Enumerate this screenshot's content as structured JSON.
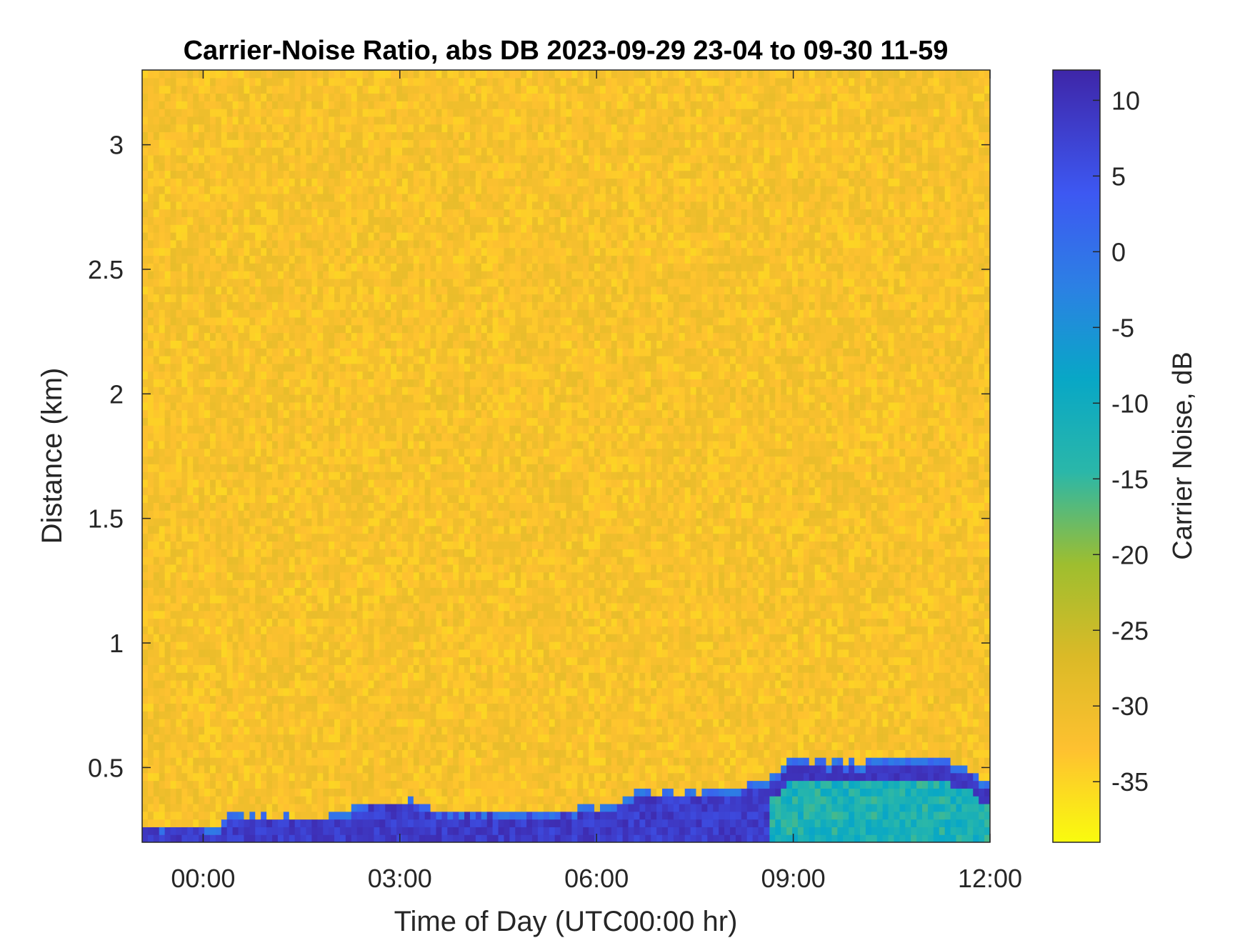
{
  "chart_data": {
    "type": "heatmap",
    "title": "Carrier-Noise Ratio, abs DB 2023-09-29 23-04 to 09-30 11-59",
    "xlabel": "Time of Day (UTC00:00 hr)",
    "ylabel": "Distance (km)",
    "colorbar_label": "Carrier Noise, dB",
    "xlim_hours": [
      -0.93,
      12.0
    ],
    "ylim_km": [
      0.2,
      3.3
    ],
    "clim_db": [
      -39,
      12
    ],
    "x_ticks": [
      {
        "value": 0,
        "label": "00:00"
      },
      {
        "value": 3,
        "label": "03:00"
      },
      {
        "value": 6,
        "label": "06:00"
      },
      {
        "value": 9,
        "label": "09:00"
      },
      {
        "value": 12,
        "label": "12:00"
      }
    ],
    "y_ticks": [
      {
        "value": 0.5,
        "label": "0.5"
      },
      {
        "value": 1,
        "label": "1"
      },
      {
        "value": 1.5,
        "label": "1.5"
      },
      {
        "value": 2,
        "label": "2"
      },
      {
        "value": 2.5,
        "label": "2.5"
      },
      {
        "value": 3,
        "label": "3"
      }
    ],
    "colorbar_ticks": [
      {
        "value": 10,
        "label": "10"
      },
      {
        "value": 5,
        "label": "5"
      },
      {
        "value": 0,
        "label": "0"
      },
      {
        "value": -5,
        "label": "-5"
      },
      {
        "value": -10,
        "label": "-10"
      },
      {
        "value": -15,
        "label": "-15"
      },
      {
        "value": -20,
        "label": "-20"
      },
      {
        "value": -25,
        "label": "-25"
      },
      {
        "value": -30,
        "label": "-30"
      },
      {
        "value": -35,
        "label": "-35"
      }
    ],
    "colormap": "parula (reversed)",
    "background_level_db": -32,
    "boundary_layer_top_km": [
      {
        "hour": -0.9,
        "km": 0.27
      },
      {
        "hour": 0.3,
        "km": 0.27
      },
      {
        "hour": 0.4,
        "km": 0.31
      },
      {
        "hour": 1.8,
        "km": 0.3
      },
      {
        "hour": 2.6,
        "km": 0.36
      },
      {
        "hour": 3.2,
        "km": 0.37
      },
      {
        "hour": 3.5,
        "km": 0.33
      },
      {
        "hour": 5.4,
        "km": 0.32
      },
      {
        "hour": 5.8,
        "km": 0.34
      },
      {
        "hour": 6.3,
        "km": 0.35
      },
      {
        "hour": 6.6,
        "km": 0.4
      },
      {
        "hour": 7.4,
        "km": 0.4
      },
      {
        "hour": 8.0,
        "km": 0.41
      },
      {
        "hour": 8.6,
        "km": 0.45
      },
      {
        "hour": 8.8,
        "km": 0.5
      },
      {
        "hour": 9.0,
        "km": 0.54
      },
      {
        "hour": 9.3,
        "km": 0.53
      },
      {
        "hour": 10.4,
        "km": 0.53
      },
      {
        "hour": 11.2,
        "km": 0.54
      },
      {
        "hour": 11.6,
        "km": 0.5
      },
      {
        "hour": 12.0,
        "km": 0.45
      }
    ],
    "cloud_peak_db": 10
  }
}
